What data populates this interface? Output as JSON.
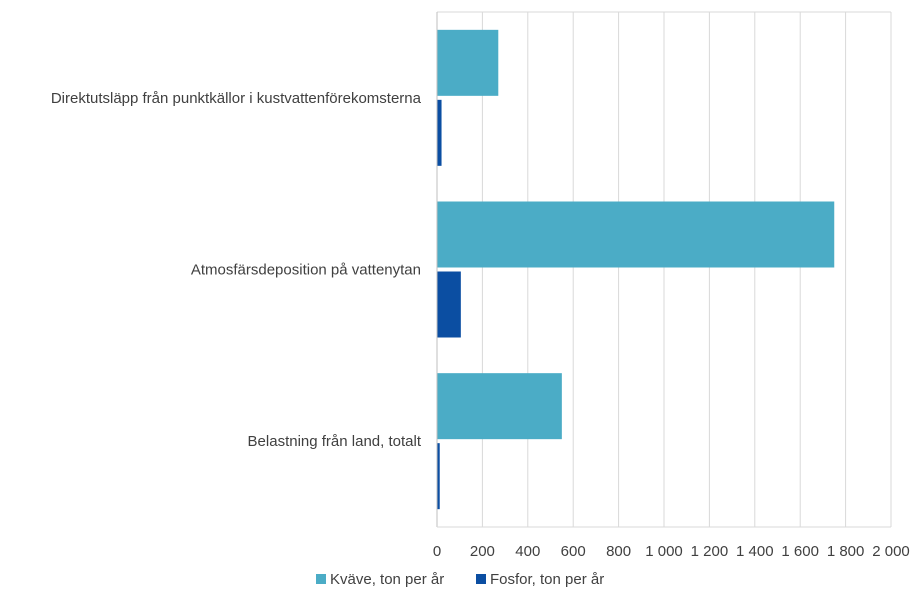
{
  "chart_data": {
    "type": "bar",
    "orientation": "horizontal",
    "categories": [
      "Direktutsläpp från punktkällor i kustvattenförekomsterna",
      "Atmosfärsdeposition på vattenytan",
      "Belastning från land, totalt"
    ],
    "series": [
      {
        "name": "Kväve, ton per år",
        "color": "#4bacc6",
        "values": [
          270,
          1750,
          550
        ]
      },
      {
        "name": "Fosfor, ton per år",
        "color": "#0b4ea2",
        "values": [
          20,
          105,
          12
        ]
      }
    ],
    "xlim": [
      0,
      2000
    ],
    "x_ticks": [
      0,
      200,
      400,
      600,
      800,
      1000,
      1200,
      1400,
      1600,
      1800,
      2000
    ],
    "x_tick_labels": [
      "0",
      "200",
      "400",
      "600",
      "800",
      "1 000",
      "1 200",
      "1 400",
      "1 600",
      "1 800",
      "2 000"
    ],
    "grid": true,
    "legend_position": "bottom"
  }
}
